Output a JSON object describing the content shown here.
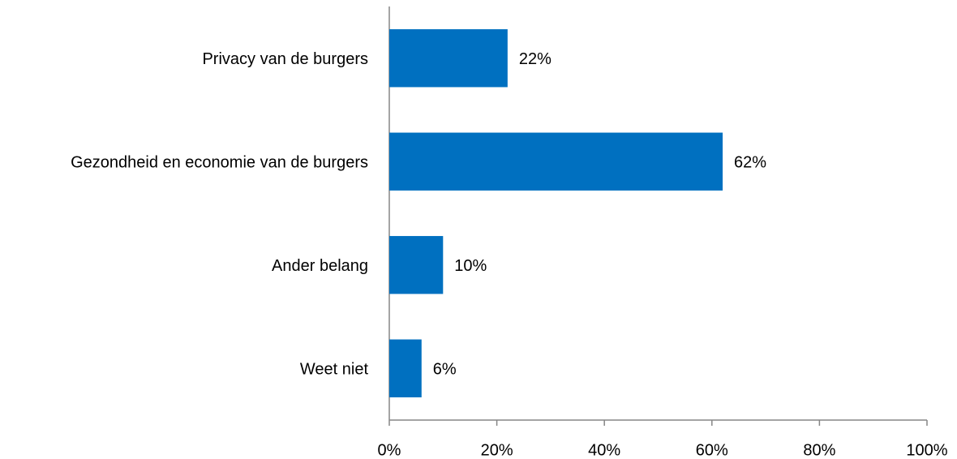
{
  "chart_data": {
    "type": "bar",
    "orientation": "horizontal",
    "categories": [
      "Privacy van de burgers",
      "Gezondheid en economie van de burgers",
      "Ander belang",
      "Weet niet"
    ],
    "values": [
      22,
      62,
      10,
      6
    ],
    "value_labels": [
      "22%",
      "62%",
      "10%",
      "6%"
    ],
    "color": "#0070c0",
    "xlim": [
      0,
      100
    ],
    "xticks": [
      {
        "value": 0,
        "label": "0%"
      },
      {
        "value": 20,
        "label": "20%"
      },
      {
        "value": 40,
        "label": "40%"
      },
      {
        "value": 60,
        "label": "60%"
      },
      {
        "value": 80,
        "label": "80%"
      },
      {
        "value": 100,
        "label": "100%"
      }
    ],
    "grid": false
  }
}
